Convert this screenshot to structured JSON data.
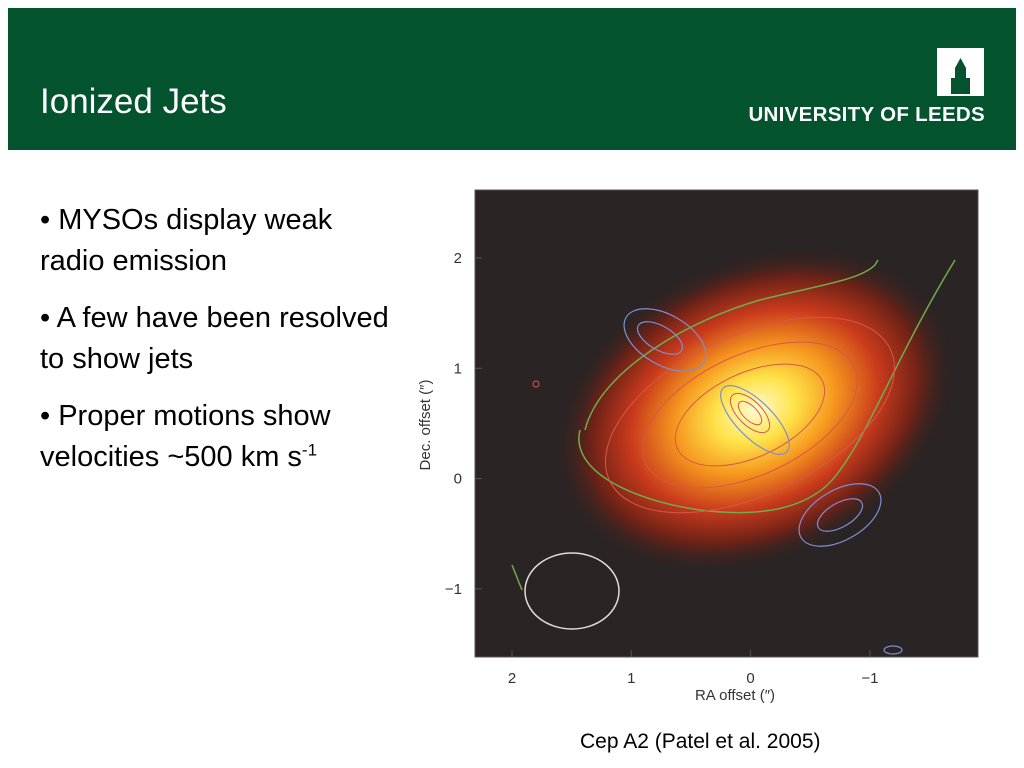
{
  "header": {
    "title": "Ionized Jets",
    "institution": "UNIVERSITY OF LEEDS"
  },
  "bullets": [
    {
      "text": "• MYSOs display weak radio emission"
    },
    {
      "text": "• A few have been resolved to show jets"
    },
    {
      "text": "• Proper motions show velocities ~500 km s",
      "superscript": "-1"
    }
  ],
  "figure": {
    "x_axis": {
      "label": "RA offset (″)",
      "ticks": [
        "2",
        "1",
        "0",
        "−1"
      ]
    },
    "y_axis": {
      "label": "Dec. offset (″)",
      "ticks": [
        "2",
        "1",
        "0",
        "−1"
      ]
    },
    "caption": "Cep A2 (Patel et al. 2005)"
  }
}
